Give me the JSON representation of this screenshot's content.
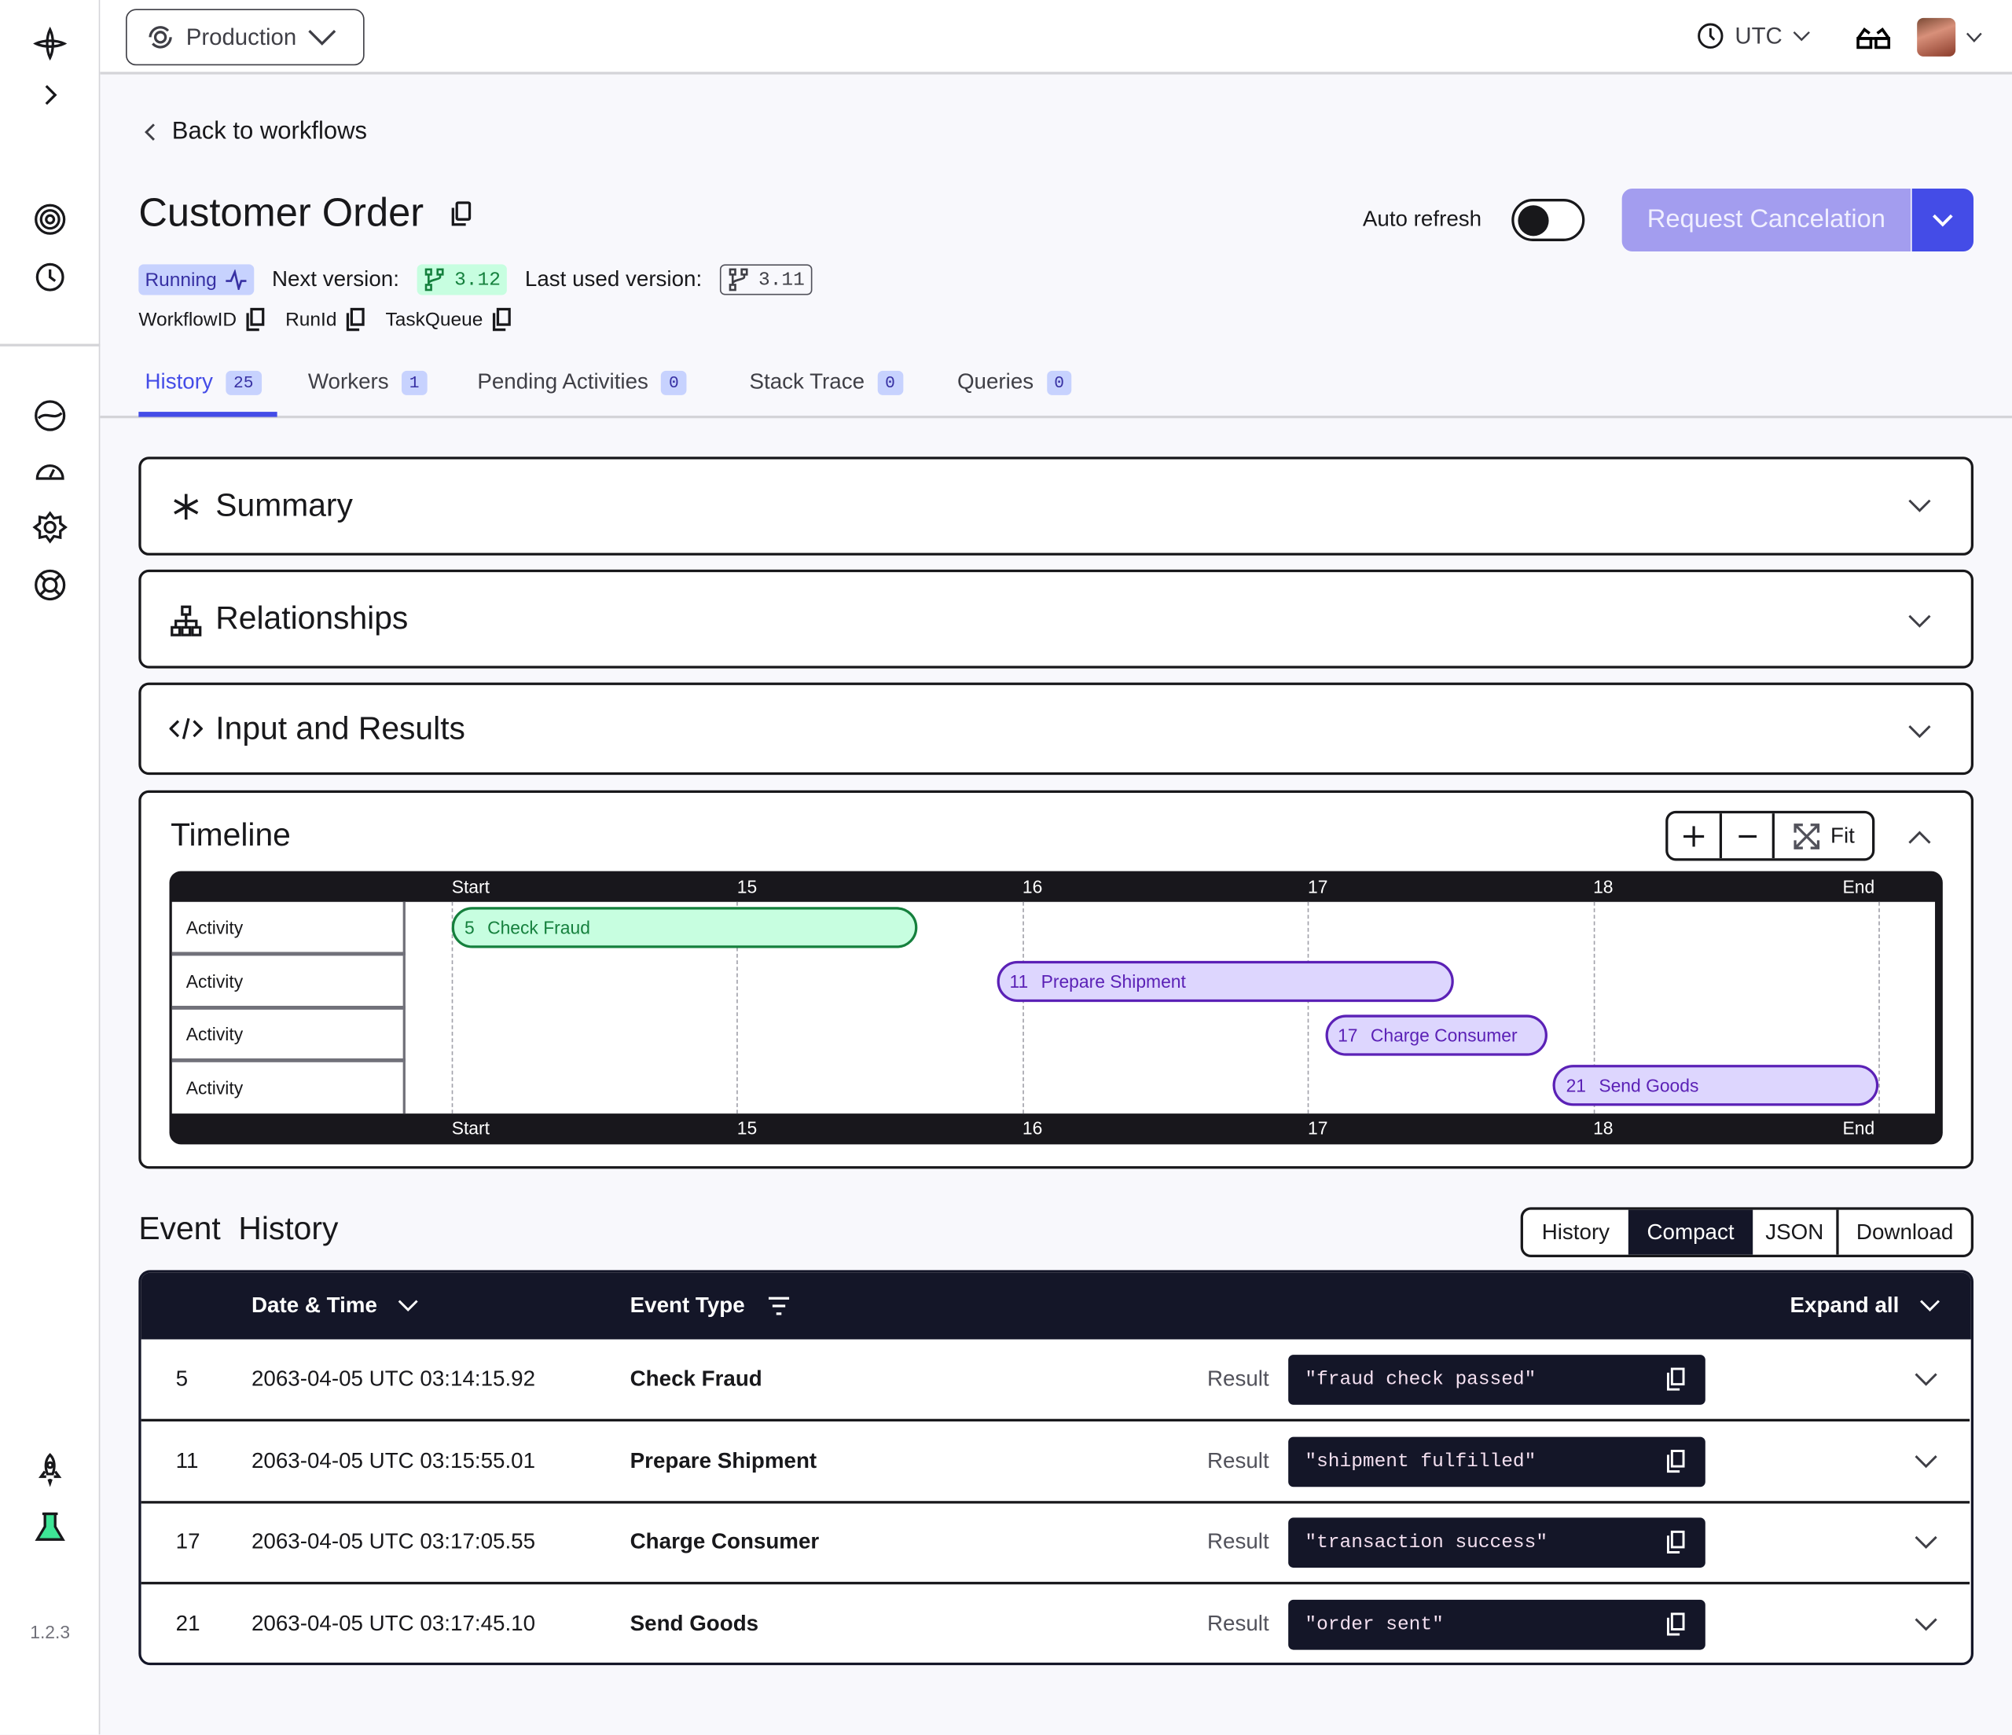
{
  "sidebar": {
    "version": "1.2.3",
    "icons": [
      "temporal-logo-icon",
      "expand-chevron-icon",
      "workflows-icon",
      "schedules-icon",
      "namespaces-icon",
      "dashboard-icon",
      "settings-icon",
      "support-icon",
      "deploy-rocket-icon",
      "labs-flask-icon"
    ]
  },
  "topbar": {
    "namespace": "Production",
    "timezone": "UTC"
  },
  "header": {
    "back_link": "Back to workflows",
    "title": "Customer Order",
    "status": "Running",
    "next_version_label": "Next version:",
    "next_version": "3.12",
    "last_version_label": "Last used version:",
    "last_version": "3.11",
    "ids": [
      "WorkflowID",
      "RunId",
      "TaskQueue"
    ],
    "auto_refresh_label": "Auto refresh",
    "auto_refresh_on": false,
    "cancel_button": "Request Cancelation"
  },
  "tabs": [
    {
      "label": "History",
      "count": "25",
      "active": true
    },
    {
      "label": "Workers",
      "count": "1"
    },
    {
      "label": "Pending Activities",
      "count": "0"
    },
    {
      "label": "Stack Trace",
      "count": "0"
    },
    {
      "label": "Queries",
      "count": "0"
    }
  ],
  "sections": {
    "summary": "Summary",
    "relationships": "Relationships",
    "input_results": "Input and Results",
    "timeline": "Timeline"
  },
  "timeline": {
    "fit_label": "Fit",
    "ticks": [
      "Start",
      "15",
      "16",
      "17",
      "18",
      "End"
    ],
    "tick_values": [
      14,
      15,
      16,
      17,
      18,
      19
    ],
    "row_label": "Activity",
    "bars": [
      {
        "id": "5",
        "name": "Check Fraud",
        "start": 14.0,
        "end": 15.63,
        "color": "green"
      },
      {
        "id": "11",
        "name": "Prepare Shipment",
        "start": 15.91,
        "end": 17.51,
        "color": "purple"
      },
      {
        "id": "17",
        "name": "Charge Consumer",
        "start": 17.06,
        "end": 17.84,
        "color": "purple"
      },
      {
        "id": "21",
        "name": "Send Goods",
        "start": 17.86,
        "end": 19.0,
        "color": "purple"
      }
    ]
  },
  "event_history": {
    "title": "Event  History",
    "views": [
      "History",
      "Compact",
      "JSON",
      "Download"
    ],
    "active_view": "Compact",
    "columns": {
      "date": "Date & Time",
      "type": "Event Type",
      "expand": "Expand all"
    },
    "result_label": "Result",
    "rows": [
      {
        "id": "5",
        "date": "2063-04-05 UTC 03:14:15.92",
        "type": "Check Fraud",
        "result": "\"fraud check passed\""
      },
      {
        "id": "11",
        "date": "2063-04-05 UTC 03:15:55.01",
        "type": "Prepare Shipment",
        "result": "\"shipment fulfilled\""
      },
      {
        "id": "17",
        "date": "2063-04-05 UTC 03:17:05.55",
        "type": "Charge Consumer",
        "result": "\"transaction success\""
      },
      {
        "id": "21",
        "date": "2063-04-05 UTC 03:17:45.10",
        "type": "Send Goods",
        "result": "\"order sent\""
      }
    ]
  },
  "colors": {
    "accent": "#444ce7",
    "green_fill": "#c7fee0",
    "green_border": "#15803d",
    "purple_fill": "#ddd6fe",
    "purple_border": "#5b21b6",
    "dark": "#141628"
  }
}
